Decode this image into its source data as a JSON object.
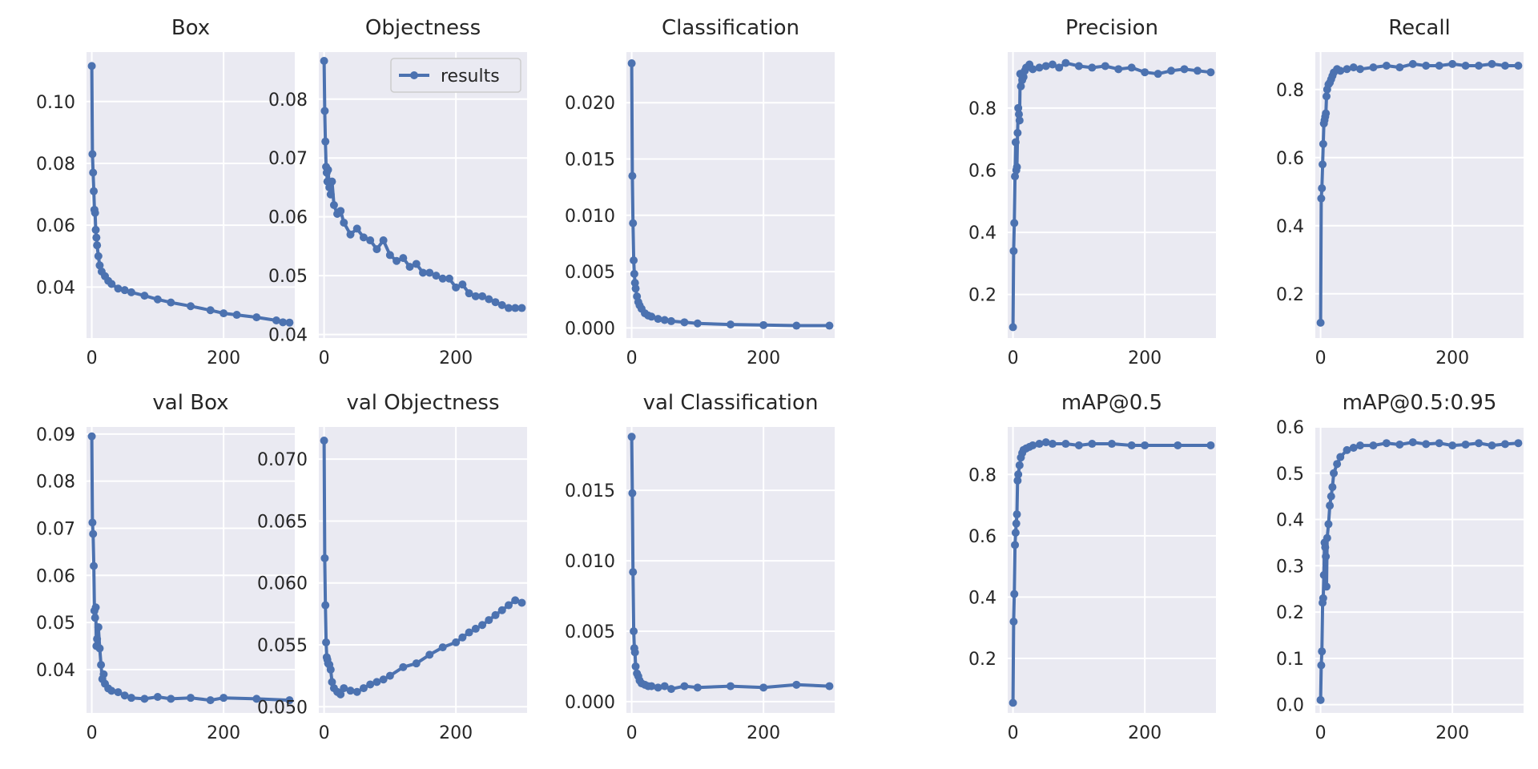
{
  "chart_data": [
    {
      "type": "line",
      "title": "Box",
      "xlabel": "",
      "ylabel": "",
      "xlim": [
        -8,
        308
      ],
      "ylim": [
        0.0235,
        0.116
      ],
      "xticks": [
        0,
        200
      ],
      "yticks": [
        0.04,
        0.06,
        0.08,
        0.1
      ],
      "ytick_labels": [
        "0.04",
        "0.06",
        "0.08",
        "0.10"
      ],
      "grid": true,
      "legend": null,
      "series": [
        {
          "name": "results",
          "x": [
            0,
            1,
            2,
            3,
            4,
            5,
            6,
            7,
            8,
            10,
            12,
            15,
            20,
            25,
            30,
            40,
            50,
            60,
            80,
            100,
            120,
            150,
            180,
            200,
            220,
            250,
            280,
            290,
            300
          ],
          "y": [
            0.1115,
            0.083,
            0.077,
            0.071,
            0.065,
            0.064,
            0.0585,
            0.056,
            0.0535,
            0.05,
            0.047,
            0.045,
            0.0435,
            0.042,
            0.041,
            0.0395,
            0.039,
            0.0383,
            0.0372,
            0.036,
            0.035,
            0.0338,
            0.0325,
            0.0315,
            0.031,
            0.0302,
            0.0292,
            0.0286,
            0.0285
          ]
        }
      ]
    },
    {
      "type": "line",
      "title": "Objectness",
      "xlabel": "",
      "ylabel": "",
      "xlim": [
        -8,
        308
      ],
      "ylim": [
        0.0394,
        0.088
      ],
      "xticks": [
        0,
        200
      ],
      "yticks": [
        0.04,
        0.05,
        0.06,
        0.07,
        0.08
      ],
      "ytick_labels": [
        "0.04",
        "0.05",
        "0.06",
        "0.07",
        "0.08"
      ],
      "grid": true,
      "legend": "top-right",
      "series": [
        {
          "name": "results",
          "x": [
            0,
            1,
            2,
            3,
            4,
            5,
            6,
            8,
            10,
            12,
            15,
            20,
            25,
            30,
            40,
            50,
            60,
            70,
            80,
            90,
            100,
            110,
            120,
            130,
            140,
            150,
            160,
            170,
            180,
            190,
            200,
            210,
            220,
            230,
            240,
            250,
            260,
            270,
            280,
            290,
            300
          ],
          "y": [
            0.0865,
            0.078,
            0.0728,
            0.0685,
            0.0675,
            0.066,
            0.068,
            0.065,
            0.0638,
            0.066,
            0.062,
            0.0605,
            0.061,
            0.059,
            0.057,
            0.058,
            0.0565,
            0.056,
            0.0545,
            0.056,
            0.0535,
            0.0525,
            0.053,
            0.0515,
            0.052,
            0.0505,
            0.0505,
            0.05,
            0.0495,
            0.0495,
            0.048,
            0.0485,
            0.047,
            0.0465,
            0.0465,
            0.046,
            0.0455,
            0.045,
            0.0445,
            0.0445,
            0.0445
          ]
        }
      ]
    },
    {
      "type": "line",
      "title": "Classification",
      "xlabel": "",
      "ylabel": "",
      "xlim": [
        -8,
        308
      ],
      "ylim": [
        -0.0009,
        0.0245
      ],
      "xticks": [
        0,
        200
      ],
      "yticks": [
        0,
        0.005,
        0.01,
        0.015,
        0.02
      ],
      "ytick_labels": [
        "0.000",
        "0.005",
        "0.010",
        "0.015",
        "0.020"
      ],
      "grid": true,
      "legend": null,
      "series": [
        {
          "name": "results",
          "x": [
            0,
            1,
            2,
            3,
            4,
            5,
            6,
            8,
            10,
            12,
            15,
            20,
            25,
            30,
            40,
            50,
            60,
            80,
            100,
            150,
            200,
            250,
            300
          ],
          "y": [
            0.0235,
            0.0135,
            0.0093,
            0.006,
            0.0048,
            0.004,
            0.0035,
            0.0028,
            0.0023,
            0.002,
            0.0017,
            0.0013,
            0.0011,
            0.001,
            0.0008,
            0.0007,
            0.0006,
            0.0005,
            0.0004,
            0.0003,
            0.00025,
            0.0002,
            0.0002
          ]
        }
      ]
    },
    {
      "type": "line",
      "title": "Precision",
      "xlabel": "",
      "ylabel": "",
      "xlim": [
        -8,
        308
      ],
      "ylim": [
        0.06,
        0.98
      ],
      "xticks": [
        0,
        200
      ],
      "yticks": [
        0.2,
        0.4,
        0.6,
        0.8
      ],
      "ytick_labels": [
        "0.2",
        "0.4",
        "0.6",
        "0.8"
      ],
      "grid": true,
      "legend": null,
      "series": [
        {
          "name": "results",
          "x": [
            0,
            1,
            2,
            3,
            4,
            5,
            6,
            7,
            8,
            9,
            10,
            11,
            12,
            14,
            16,
            18,
            20,
            25,
            30,
            40,
            50,
            60,
            70,
            80,
            100,
            120,
            140,
            160,
            180,
            200,
            220,
            240,
            260,
            280,
            300
          ],
          "y": [
            0.095,
            0.34,
            0.43,
            0.58,
            0.69,
            0.6,
            0.61,
            0.72,
            0.8,
            0.78,
            0.76,
            0.91,
            0.87,
            0.89,
            0.9,
            0.92,
            0.93,
            0.94,
            0.925,
            0.93,
            0.935,
            0.94,
            0.93,
            0.945,
            0.935,
            0.93,
            0.935,
            0.925,
            0.93,
            0.915,
            0.91,
            0.92,
            0.925,
            0.92,
            0.915
          ]
        }
      ]
    },
    {
      "type": "line",
      "title": "Recall",
      "xlabel": "",
      "ylabel": "",
      "xlim": [
        -8,
        308
      ],
      "ylim": [
        0.07,
        0.91
      ],
      "xticks": [
        0,
        200
      ],
      "yticks": [
        0.2,
        0.4,
        0.6,
        0.8
      ],
      "ytick_labels": [
        "0.2",
        "0.4",
        "0.6",
        "0.8"
      ],
      "grid": true,
      "legend": null,
      "series": [
        {
          "name": "results",
          "x": [
            0,
            1,
            2,
            3,
            4,
            5,
            6,
            7,
            8,
            9,
            10,
            12,
            14,
            16,
            18,
            20,
            25,
            30,
            40,
            50,
            60,
            80,
            100,
            120,
            140,
            160,
            180,
            200,
            220,
            240,
            260,
            280,
            300
          ],
          "y": [
            0.115,
            0.48,
            0.51,
            0.58,
            0.64,
            0.7,
            0.71,
            0.72,
            0.73,
            0.78,
            0.8,
            0.815,
            0.82,
            0.83,
            0.84,
            0.85,
            0.86,
            0.855,
            0.86,
            0.865,
            0.86,
            0.865,
            0.87,
            0.865,
            0.875,
            0.87,
            0.87,
            0.875,
            0.87,
            0.87,
            0.875,
            0.87,
            0.87
          ]
        }
      ]
    },
    {
      "type": "line",
      "title": "val Box",
      "xlabel": "",
      "ylabel": "",
      "xlim": [
        -8,
        308
      ],
      "ylim": [
        0.0308,
        0.0915
      ],
      "xticks": [
        0,
        200
      ],
      "yticks": [
        0.04,
        0.05,
        0.06,
        0.07,
        0.08,
        0.09
      ],
      "ytick_labels": [
        "0.04",
        "0.05",
        "0.06",
        "0.07",
        "0.08",
        "0.09"
      ],
      "grid": true,
      "legend": null,
      "series": [
        {
          "name": "results",
          "x": [
            0,
            1,
            2,
            3,
            4,
            5,
            6,
            7,
            8,
            10,
            12,
            14,
            16,
            18,
            20,
            25,
            30,
            40,
            50,
            60,
            80,
            100,
            120,
            150,
            180,
            200,
            250,
            300
          ],
          "y": [
            0.0895,
            0.0712,
            0.0688,
            0.062,
            0.0525,
            0.051,
            0.0532,
            0.045,
            0.0465,
            0.049,
            0.0445,
            0.041,
            0.038,
            0.039,
            0.037,
            0.036,
            0.0355,
            0.0352,
            0.0345,
            0.034,
            0.0338,
            0.0342,
            0.0338,
            0.034,
            0.0335,
            0.034,
            0.0338,
            0.0335
          ]
        }
      ]
    },
    {
      "type": "line",
      "title": "val Objectness",
      "xlabel": "",
      "ylabel": "",
      "xlim": [
        -8,
        308
      ],
      "ylim": [
        0.0495,
        0.0726
      ],
      "xticks": [
        0,
        200
      ],
      "yticks": [
        0.05,
        0.055,
        0.06,
        0.065,
        0.07
      ],
      "ytick_labels": [
        "0.050",
        "0.055",
        "0.060",
        "0.065",
        "0.070"
      ],
      "grid": true,
      "legend": null,
      "series": [
        {
          "name": "results",
          "x": [
            0,
            1,
            2,
            3,
            4,
            5,
            6,
            8,
            10,
            12,
            15,
            20,
            25,
            30,
            40,
            50,
            60,
            70,
            80,
            90,
            100,
            120,
            140,
            160,
            180,
            200,
            210,
            220,
            230,
            240,
            250,
            260,
            270,
            280,
            290,
            300
          ],
          "y": [
            0.0715,
            0.062,
            0.0582,
            0.0552,
            0.054,
            0.0538,
            0.0535,
            0.0534,
            0.053,
            0.052,
            0.0515,
            0.0512,
            0.051,
            0.0515,
            0.0513,
            0.0512,
            0.0515,
            0.0518,
            0.052,
            0.0522,
            0.0525,
            0.0532,
            0.0535,
            0.0542,
            0.0548,
            0.0552,
            0.0556,
            0.056,
            0.0563,
            0.0566,
            0.057,
            0.0574,
            0.0578,
            0.0582,
            0.0586,
            0.0584
          ]
        }
      ]
    },
    {
      "type": "line",
      "title": "val Classification",
      "xlabel": "",
      "ylabel": "",
      "xlim": [
        -8,
        308
      ],
      "ylim": [
        -0.0008,
        0.0195
      ],
      "xticks": [
        0,
        200
      ],
      "yticks": [
        0,
        0.005,
        0.01,
        0.015
      ],
      "ytick_labels": [
        "0.000",
        "0.005",
        "0.010",
        "0.015"
      ],
      "grid": true,
      "legend": null,
      "series": [
        {
          "name": "results",
          "x": [
            0,
            1,
            2,
            3,
            4,
            5,
            6,
            8,
            10,
            12,
            15,
            20,
            25,
            30,
            40,
            50,
            60,
            80,
            100,
            150,
            200,
            250,
            300
          ],
          "y": [
            0.0188,
            0.0148,
            0.0092,
            0.005,
            0.0038,
            0.0035,
            0.0025,
            0.002,
            0.0018,
            0.0015,
            0.0013,
            0.0012,
            0.0011,
            0.0011,
            0.001,
            0.0011,
            0.0009,
            0.0011,
            0.001,
            0.0011,
            0.001,
            0.0012,
            0.0011
          ]
        }
      ]
    },
    {
      "type": "line",
      "title": "mAP@0.5",
      "xlabel": "",
      "ylabel": "",
      "xlim": [
        -8,
        308
      ],
      "ylim": [
        0.022,
        0.955
      ],
      "xticks": [
        0,
        200
      ],
      "yticks": [
        0.2,
        0.4,
        0.6,
        0.8
      ],
      "ytick_labels": [
        "0.2",
        "0.4",
        "0.6",
        "0.8"
      ],
      "grid": true,
      "legend": null,
      "series": [
        {
          "name": "results",
          "x": [
            0,
            1,
            2,
            3,
            4,
            5,
            6,
            7,
            8,
            10,
            12,
            14,
            16,
            20,
            25,
            30,
            40,
            50,
            60,
            80,
            100,
            120,
            150,
            180,
            200,
            250,
            300
          ],
          "y": [
            0.055,
            0.32,
            0.41,
            0.57,
            0.61,
            0.64,
            0.67,
            0.78,
            0.8,
            0.83,
            0.855,
            0.87,
            0.88,
            0.885,
            0.89,
            0.895,
            0.9,
            0.905,
            0.9,
            0.9,
            0.895,
            0.9,
            0.9,
            0.895,
            0.895,
            0.895,
            0.895
          ]
        }
      ]
    },
    {
      "type": "line",
      "title": "mAP@0.5:0.95",
      "xlabel": "",
      "ylabel": "",
      "xlim": [
        -8,
        308
      ],
      "ylim": [
        -0.018,
        0.6
      ],
      "xticks": [
        0,
        200
      ],
      "yticks": [
        0,
        0.1,
        0.2,
        0.3,
        0.4,
        0.5,
        0.6
      ],
      "ytick_labels": [
        "0.0",
        "0.1",
        "0.2",
        "0.3",
        "0.4",
        "0.5",
        "0.6"
      ],
      "grid": true,
      "legend": null,
      "series": [
        {
          "name": "results",
          "x": [
            0,
            1,
            2,
            3,
            4,
            5,
            6,
            7,
            8,
            9,
            10,
            12,
            14,
            16,
            18,
            20,
            25,
            30,
            40,
            50,
            60,
            80,
            100,
            120,
            140,
            160,
            180,
            200,
            220,
            240,
            260,
            280,
            300
          ],
          "y": [
            0.01,
            0.085,
            0.115,
            0.22,
            0.23,
            0.28,
            0.35,
            0.34,
            0.32,
            0.255,
            0.36,
            0.39,
            0.43,
            0.45,
            0.47,
            0.5,
            0.52,
            0.535,
            0.55,
            0.555,
            0.56,
            0.56,
            0.565,
            0.562,
            0.567,
            0.563,
            0.565,
            0.56,
            0.562,
            0.565,
            0.56,
            0.563,
            0.565
          ]
        }
      ]
    }
  ],
  "style": {
    "background": "#eaeaf2",
    "grid_color": "#ffffff",
    "line_color": "#4c72b0",
    "text_color": "#262626"
  }
}
